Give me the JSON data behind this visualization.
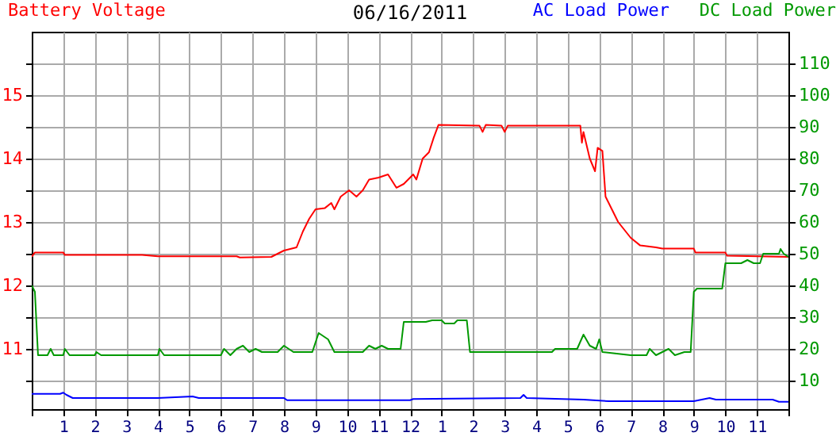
{
  "chart_data": {
    "type": "line",
    "title": "06/16/2011",
    "legend": "top",
    "grid": true,
    "xlim": [
      "2011-06-16T00:00",
      "2011-06-17T00:00"
    ],
    "xticks": [
      {
        "value": "2011-06-16T00:00",
        "label": null
      },
      {
        "value": "2011-06-16T01:00",
        "label": "1"
      },
      {
        "value": "2011-06-16T02:00",
        "label": "2"
      },
      {
        "value": "2011-06-16T03:00",
        "label": "3"
      },
      {
        "value": "2011-06-16T04:00",
        "label": "4"
      },
      {
        "value": "2011-06-16T05:00",
        "label": "5"
      },
      {
        "value": "2011-06-16T06:00",
        "label": "6"
      },
      {
        "value": "2011-06-16T07:00",
        "label": "7"
      },
      {
        "value": "2011-06-16T08:00",
        "label": "8"
      },
      {
        "value": "2011-06-16T09:00",
        "label": "9"
      },
      {
        "value": "2011-06-16T10:00",
        "label": "10"
      },
      {
        "value": "2011-06-16T11:00",
        "label": "11"
      },
      {
        "value": "2011-06-16T12:00",
        "label": "12"
      },
      {
        "value": "2011-06-16T13:00",
        "label": "1"
      },
      {
        "value": "2011-06-16T14:00",
        "label": "2"
      },
      {
        "value": "2011-06-16T15:00",
        "label": "3"
      },
      {
        "value": "2011-06-16T16:00",
        "label": "4"
      },
      {
        "value": "2011-06-16T17:00",
        "label": "5"
      },
      {
        "value": "2011-06-16T18:00",
        "label": "6"
      },
      {
        "value": "2011-06-16T19:00",
        "label": "7"
      },
      {
        "value": "2011-06-16T20:00",
        "label": "8"
      },
      {
        "value": "2011-06-16T21:00",
        "label": "9"
      },
      {
        "value": "2011-06-16T22:00",
        "label": "10"
      },
      {
        "value": "2011-06-16T23:00",
        "label": "11"
      },
      {
        "value": "2011-06-17T00:00",
        "label": null
      }
    ],
    "ylim": [
      10.05,
      16
    ],
    "yticks": [
      {
        "value": 10.5,
        "label": null
      },
      11,
      {
        "value": 11.5,
        "label": null
      },
      12,
      {
        "value": 12.5,
        "label": null
      },
      13,
      {
        "value": 13.5,
        "label": null
      },
      14,
      {
        "value": 14.5,
        "label": null
      },
      15,
      {
        "value": 15.5,
        "label": null
      }
    ],
    "y2lim": [
      1,
      120
    ],
    "y2ticks": [
      10,
      20,
      30,
      40,
      50,
      60,
      70,
      80,
      90,
      100,
      110
    ],
    "series": [
      {
        "name": "Battery Voltage",
        "color": "#ff0000",
        "axis": "y",
        "x": [
          "2011-06-16T00:00",
          "2011-06-16T00:06",
          "2011-06-16T01:00",
          "2011-06-16T01:03",
          "2011-06-16T03:30",
          "2011-06-16T04:00",
          "2011-06-16T06:30",
          "2011-06-16T06:36",
          "2011-06-16T07:36",
          "2011-06-16T07:48",
          "2011-06-16T08:00",
          "2011-06-16T08:24",
          "2011-06-16T08:36",
          "2011-06-16T08:48",
          "2011-06-16T09:00",
          "2011-06-16T09:18",
          "2011-06-16T09:30",
          "2011-06-16T09:36",
          "2011-06-16T09:48",
          "2011-06-16T10:04",
          "2011-06-16T10:18",
          "2011-06-16T10:30",
          "2011-06-16T10:42",
          "2011-06-16T11:00",
          "2011-06-16T11:18",
          "2011-06-16T11:34",
          "2011-06-16T11:48",
          "2011-06-16T12:06",
          "2011-06-16T12:12",
          "2011-06-16T12:24",
          "2011-06-16T12:36",
          "2011-06-16T12:45",
          "2011-06-16T12:54",
          "2011-06-16T14:12",
          "2011-06-16T14:18",
          "2011-06-16T14:24",
          "2011-06-16T14:54",
          "2011-06-16T15:00",
          "2011-06-16T15:06",
          "2011-06-16T17:24",
          "2011-06-16T17:27",
          "2011-06-16T17:30",
          "2011-06-16T17:42",
          "2011-06-16T17:52",
          "2011-06-16T17:57",
          "2011-06-16T18:06",
          "2011-06-16T18:12",
          "2011-06-16T18:24",
          "2011-06-16T18:36",
          "2011-06-16T19:00",
          "2011-06-16T19:18",
          "2011-06-16T19:48",
          "2011-06-16T20:00",
          "2011-06-16T21:00",
          "2011-06-16T21:03",
          "2011-06-16T22:00",
          "2011-06-16T22:03",
          "2011-06-17T00:00"
        ],
        "values": [
          12.45,
          12.52,
          12.52,
          12.48,
          12.48,
          12.46,
          12.46,
          12.44,
          12.45,
          12.5,
          12.55,
          12.6,
          12.85,
          13.05,
          13.2,
          13.22,
          13.3,
          13.2,
          13.4,
          13.5,
          13.4,
          13.5,
          13.67,
          13.7,
          13.75,
          13.54,
          13.6,
          13.75,
          13.67,
          14.0,
          14.1,
          14.33,
          14.53,
          14.52,
          14.42,
          14.53,
          14.52,
          14.42,
          14.52,
          14.52,
          14.25,
          14.42,
          14.0,
          13.8,
          14.17,
          14.12,
          13.4,
          13.2,
          13.0,
          12.75,
          12.63,
          12.6,
          12.58,
          12.58,
          12.52,
          12.52,
          12.47,
          12.45
        ]
      },
      {
        "name": "AC Load Power",
        "color": "#0000ff",
        "axis": "y2",
        "x": [
          "2011-06-16T00:00",
          "2011-06-16T00:54",
          "2011-06-16T01:00",
          "2011-06-16T01:06",
          "2011-06-16T01:18",
          "2011-06-16T04:00",
          "2011-06-16T05:06",
          "2011-06-16T05:18",
          "2011-06-16T08:00",
          "2011-06-16T08:06",
          "2011-06-16T12:00",
          "2011-06-16T12:06",
          "2011-06-16T15:30",
          "2011-06-16T15:36",
          "2011-06-16T15:42",
          "2011-06-16T17:30",
          "2011-06-16T18:18",
          "2011-06-16T21:00",
          "2011-06-16T21:30",
          "2011-06-16T21:42",
          "2011-06-16T23:30",
          "2011-06-16T23:42",
          "2011-06-17T00:00"
        ],
        "values": [
          5.8,
          5.8,
          6.2,
          5.5,
          4.5,
          4.5,
          5,
          4.5,
          4.5,
          3.8,
          3.8,
          4.2,
          4.5,
          5.5,
          4.5,
          4,
          3.5,
          3.5,
          4.5,
          4,
          4,
          3.3,
          3.3
        ]
      },
      {
        "name": "DC Load Power",
        "color": "#009900",
        "axis": "y2",
        "x": [
          "2011-06-16T00:00",
          "2011-06-16T00:06",
          "2011-06-16T00:12",
          "2011-06-16T00:30",
          "2011-06-16T00:36",
          "2011-06-16T00:42",
          "2011-06-16T01:00",
          "2011-06-16T01:03",
          "2011-06-16T01:12",
          "2011-06-16T02:00",
          "2011-06-16T02:03",
          "2011-06-16T02:12",
          "2011-06-16T04:00",
          "2011-06-16T04:03",
          "2011-06-16T04:12",
          "2011-06-16T06:00",
          "2011-06-16T06:06",
          "2011-06-16T06:18",
          "2011-06-16T06:30",
          "2011-06-16T06:42",
          "2011-06-16T06:54",
          "2011-06-16T07:06",
          "2011-06-16T07:18",
          "2011-06-16T07:48",
          "2011-06-16T08:00",
          "2011-06-16T08:18",
          "2011-06-16T08:54",
          "2011-06-16T09:06",
          "2011-06-16T09:24",
          "2011-06-16T09:36",
          "2011-06-16T10:30",
          "2011-06-16T10:42",
          "2011-06-16T10:54",
          "2011-06-16T11:06",
          "2011-06-16T11:18",
          "2011-06-16T11:42",
          "2011-06-16T11:48",
          "2011-06-16T12:30",
          "2011-06-16T12:42",
          "2011-06-16T13:00",
          "2011-06-16T13:06",
          "2011-06-16T13:24",
          "2011-06-16T13:30",
          "2011-06-16T13:48",
          "2011-06-16T13:54",
          "2011-06-16T16:30",
          "2011-06-16T16:36",
          "2011-06-16T17:18",
          "2011-06-16T17:30",
          "2011-06-16T17:42",
          "2011-06-16T17:54",
          "2011-06-16T18:00",
          "2011-06-16T18:06",
          "2011-06-16T19:00",
          "2011-06-16T19:30",
          "2011-06-16T19:36",
          "2011-06-16T19:48",
          "2011-06-16T20:12",
          "2011-06-16T20:24",
          "2011-06-16T20:42",
          "2011-06-16T20:54",
          "2011-06-16T21:00",
          "2011-06-16T21:06",
          "2011-06-16T21:54",
          "2011-06-16T22:00",
          "2011-06-16T22:30",
          "2011-06-16T22:42",
          "2011-06-16T22:54",
          "2011-06-16T23:06",
          "2011-06-16T23:12",
          "2011-06-16T23:42",
          "2011-06-16T23:45",
          "2011-06-16T23:51",
          "2011-06-17T00:00"
        ],
        "values": [
          40,
          38,
          18,
          18,
          20,
          18,
          18,
          20,
          18,
          18,
          19,
          18,
          18,
          20,
          18,
          18,
          20,
          18,
          20,
          21,
          19,
          20,
          19,
          19,
          21,
          19,
          19,
          25,
          23,
          19,
          19,
          21,
          20,
          21,
          20,
          20,
          28.5,
          28.5,
          29,
          29,
          28,
          28,
          29,
          29,
          19,
          19,
          20,
          20,
          24.5,
          21,
          20,
          23,
          19,
          18,
          18,
          20,
          18,
          20,
          18,
          19,
          19,
          38,
          39,
          39,
          47,
          47,
          48,
          47,
          47,
          50,
          50,
          51.5,
          50,
          49
        ]
      }
    ]
  }
}
